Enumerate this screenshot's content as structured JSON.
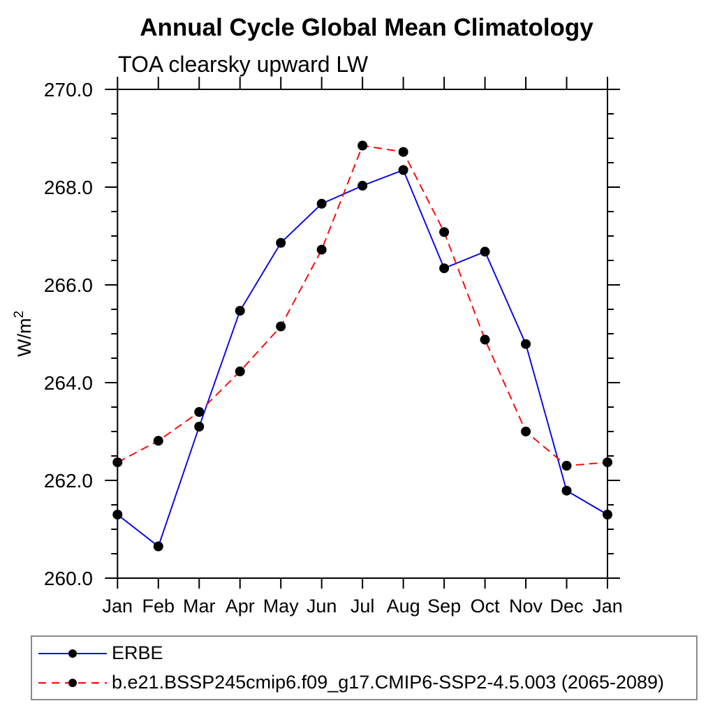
{
  "title": "Annual Cycle Global Mean Climatology",
  "subtitle": "TOA clearsky upward LW",
  "chart_data": {
    "type": "line",
    "categories": [
      "Jan",
      "Feb",
      "Mar",
      "Apr",
      "May",
      "Jun",
      "Jul",
      "Aug",
      "Sep",
      "Oct",
      "Nov",
      "Dec",
      "Jan"
    ],
    "series": [
      {
        "name": "ERBE",
        "color": "#0000ee",
        "line_style": "solid",
        "marker": "circle",
        "marker_color": "#000000",
        "values": [
          261.3,
          260.65,
          263.1,
          265.47,
          266.86,
          267.66,
          268.03,
          268.35,
          266.34,
          266.68,
          264.79,
          261.79,
          261.3
        ]
      },
      {
        "name": "b.e21.BSSP245cmip6.f09_g17.CMIP6-SSP2-4.5.003 (2065-2089)",
        "color": "#ff0000",
        "line_style": "dashed",
        "marker": "circle",
        "marker_color": "#000000",
        "values": [
          262.37,
          262.81,
          263.4,
          264.23,
          265.15,
          266.72,
          268.85,
          268.72,
          267.08,
          264.88,
          263.0,
          262.3,
          262.37
        ]
      }
    ],
    "xlabel": "",
    "ylabel": "W/m²",
    "ylim": [
      260.0,
      270.0
    ],
    "ytick_major_step": 2.0,
    "ytick_minor_step": 0.5,
    "ytick_labels": [
      "260.0",
      "262.0",
      "264.0",
      "266.0",
      "268.0",
      "270.0"
    ],
    "grid": false,
    "legend_position": "bottom",
    "axis_color": "#000000"
  }
}
